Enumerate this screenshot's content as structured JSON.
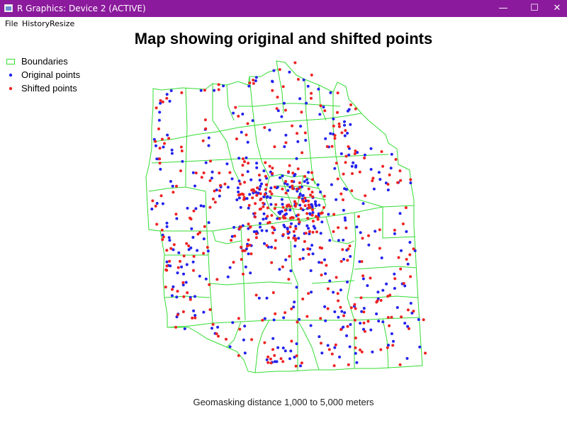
{
  "window": {
    "title": "R Graphics: Device 2 (ACTIVE)",
    "minimize": "—",
    "maximize": "☐",
    "close": "✕"
  },
  "menu": {
    "items": [
      "File",
      "History",
      "Resize"
    ]
  },
  "plot": {
    "title": "Map showing original and shifted points",
    "subtitle": "Geomasking distance  1,000 to 5,000 meters",
    "colors": {
      "boundaries": "#33dd33",
      "original": "#2222ee",
      "shifted": "#ee2222"
    },
    "legend": {
      "boundaries": "Boundaries",
      "original": "Original points",
      "shifted": "Shifted points"
    }
  }
}
